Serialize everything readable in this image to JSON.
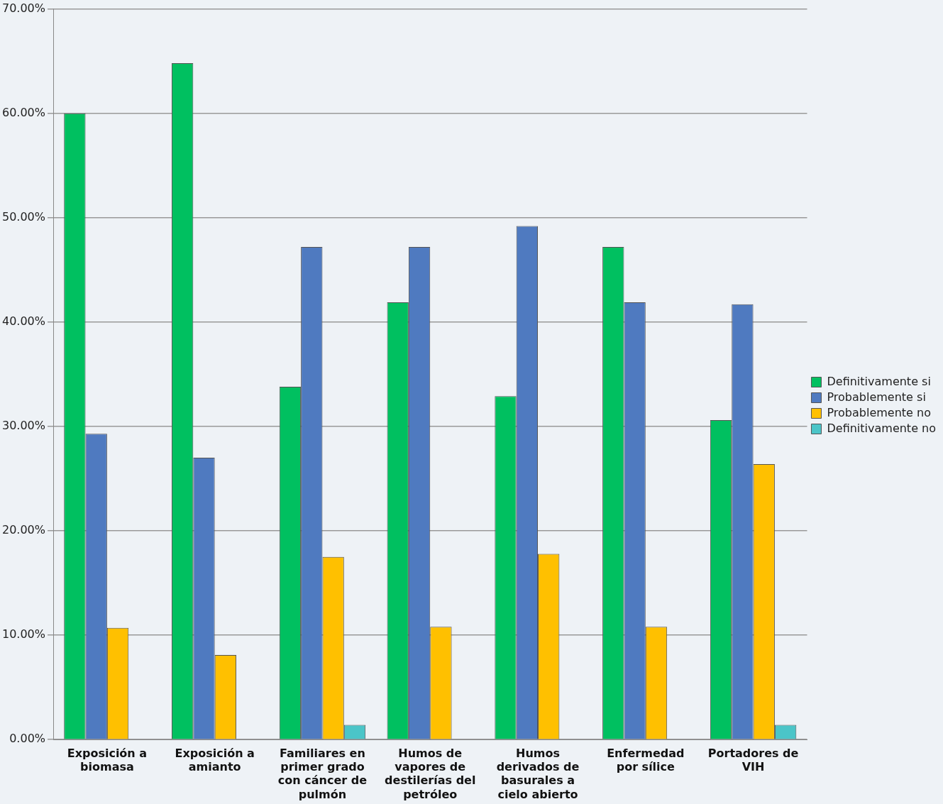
{
  "chart_data": {
    "type": "bar",
    "categories": [
      "Exposición a biomasa",
      "Exposición a amianto",
      "Familiares en primer grado con cáncer de pulmón",
      "Humos de vapores de destilerías del petróleo",
      "Humos derivados de basurales a cielo abierto",
      "Enfermedad por sílice",
      "Portadores de VIH"
    ],
    "series": [
      {
        "name": "Definitivamente si",
        "color": "#00c060",
        "values": [
          60.0,
          64.8,
          33.8,
          41.9,
          32.9,
          47.2,
          30.6
        ]
      },
      {
        "name": "Probablemente si",
        "color": "#4f7ac0",
        "values": [
          29.3,
          27.0,
          47.2,
          47.2,
          49.2,
          41.9,
          41.7
        ]
      },
      {
        "name": "Probablemente no",
        "color": "#ffc000",
        "values": [
          10.7,
          8.1,
          17.5,
          10.8,
          17.8,
          10.8,
          26.4
        ]
      },
      {
        "name": "Definitivamente no",
        "color": "#4bc5c8",
        "values": [
          0,
          0,
          1.4,
          0,
          0,
          0,
          1.4
        ]
      }
    ],
    "ylim": [
      0,
      70
    ],
    "yticks": [
      {
        "value": 0,
        "label": "0.00%"
      },
      {
        "value": 10,
        "label": "10.00%"
      },
      {
        "value": 20,
        "label": "20.00%"
      },
      {
        "value": 30,
        "label": "30.00%"
      },
      {
        "value": 40,
        "label": "40.00%"
      },
      {
        "value": 50,
        "label": "50.00%"
      },
      {
        "value": 60,
        "label": "60.00%"
      },
      {
        "value": 70,
        "label": "70.00%"
      }
    ],
    "grid": "y",
    "legend": "right"
  }
}
